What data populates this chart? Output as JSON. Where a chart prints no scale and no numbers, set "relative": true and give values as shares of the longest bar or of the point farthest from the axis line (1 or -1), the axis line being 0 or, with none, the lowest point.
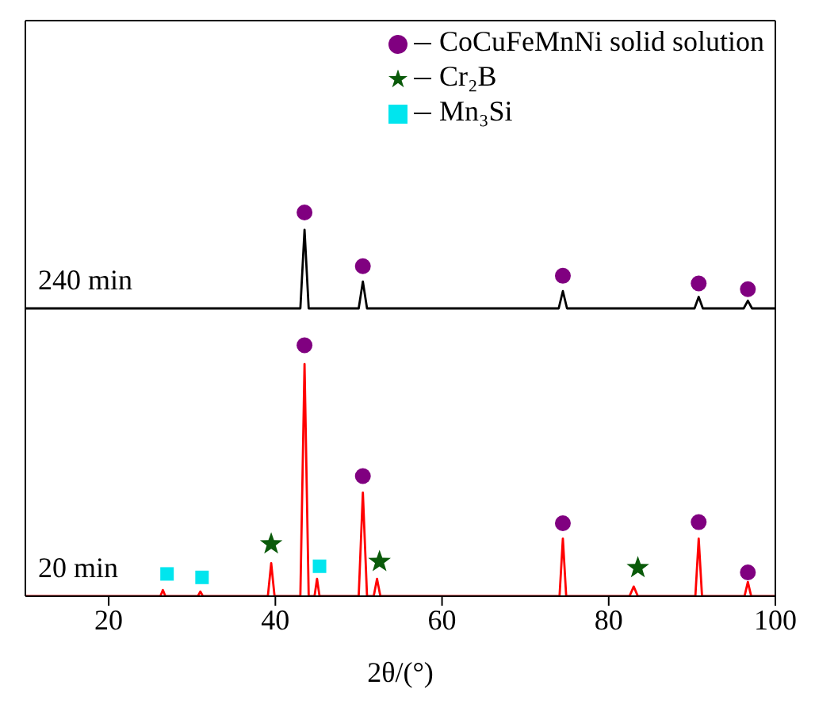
{
  "chart_data": {
    "type": "line",
    "relative": true,
    "xlabel": "2θ/(°)",
    "xlim": [
      10,
      100
    ],
    "xticks": [
      20,
      40,
      60,
      80,
      100
    ],
    "tick_labels": "x",
    "legend": "top right",
    "grid": false,
    "series": [
      {
        "name": "240 min",
        "color": "#000000",
        "x": [
          10,
          20,
          30,
          40,
          43.0,
          43.5,
          44.0,
          50.0,
          50.5,
          51.0,
          60,
          74.0,
          74.5,
          75.0,
          85,
          90.3,
          90.8,
          91.3,
          96.2,
          96.7,
          97.2,
          100
        ],
        "values": [
          0.75,
          0.75,
          0.75,
          0.75,
          0.75,
          0.955,
          0.75,
          0.75,
          0.82,
          0.75,
          0.75,
          0.75,
          0.795,
          0.75,
          0.75,
          0.75,
          0.78,
          0.75,
          0.75,
          0.77,
          0.75,
          0.75
        ]
      },
      {
        "name": "20 min",
        "color": "#ff0000",
        "x": [
          10,
          26.2,
          26.5,
          26.8,
          30.7,
          31,
          31.3,
          39.1,
          39.5,
          39.9,
          43.0,
          43.5,
          44.0,
          44.7,
          45,
          45.3,
          50.0,
          50.5,
          51.0,
          51.8,
          52.2,
          52.6,
          60,
          74.1,
          74.5,
          74.9,
          82.5,
          83,
          83.5,
          90.4,
          90.8,
          91.2,
          96.3,
          96.7,
          97.1,
          100
        ],
        "values": [
          0,
          0,
          0.016,
          0,
          0,
          0.012,
          0,
          0,
          0.086,
          0,
          0,
          0.605,
          0,
          0,
          0.045,
          0,
          0,
          0.27,
          0,
          0,
          0.045,
          0,
          0,
          0,
          0.15,
          0,
          0,
          0.025,
          0,
          0,
          0.15,
          0,
          0,
          0.037,
          0,
          0
        ]
      },
      {
        "type": "scatter",
        "name": "CoCuFeMnNi solid solution",
        "color": "#800080",
        "marker": "circle",
        "x": [
          43.5,
          50.5,
          74.5,
          90.8,
          96.7,
          43.5,
          50.5,
          74.5,
          90.8,
          96.7
        ],
        "values": [
          1.0,
          0.86,
          0.835,
          0.815,
          0.8,
          0.654,
          0.313,
          0.19,
          0.193,
          0.062
        ]
      },
      {
        "type": "scatter",
        "name": "Cr₂B",
        "color": "#0a5a0a",
        "marker": "star",
        "x": [
          39.5,
          52.5,
          83.5
        ],
        "values": [
          0.136,
          0.09,
          0.074
        ]
      },
      {
        "type": "scatter",
        "name": "Mn₃Si",
        "color": "#00e5ee",
        "marker": "square",
        "x": [
          27,
          31.2,
          45.3
        ],
        "values": [
          0.058,
          0.049,
          0.078
        ]
      }
    ]
  }
}
